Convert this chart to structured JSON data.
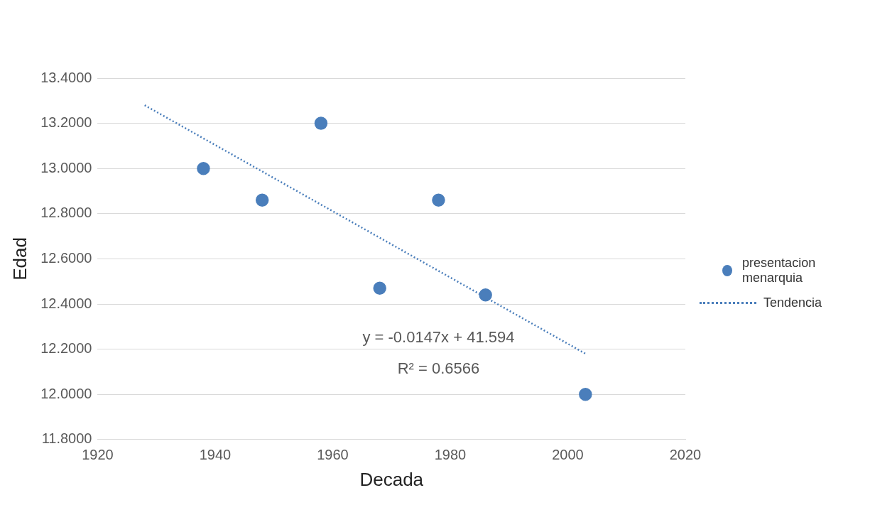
{
  "chart_data": {
    "type": "scatter",
    "xlabel": "Decada",
    "ylabel": "Edad",
    "series": [
      {
        "name": "presentacion menarquia",
        "color": "#4a7ebb",
        "x": [
          1938,
          1948,
          1958,
          1968,
          1978,
          1986,
          2003
        ],
        "values": [
          13.0,
          12.86,
          13.2,
          12.47,
          12.86,
          12.44,
          12.0
        ],
        "marker": "circle"
      },
      {
        "name": "Tendencia",
        "type": "line",
        "color": "#4a7ebb",
        "x": [
          1928,
          2003
        ],
        "values": [
          13.28,
          12.18
        ],
        "line_style": "dotted",
        "marker": "none"
      }
    ],
    "xlim": [
      1920,
      2020
    ],
    "xticks": [
      1920,
      1940,
      1960,
      1980,
      2000,
      2020
    ],
    "ylim": [
      11.8,
      13.4
    ],
    "yticks": [
      {
        "value": 11.8,
        "label": "11.8000"
      },
      {
        "value": 12.0,
        "label": "12.0000"
      },
      {
        "value": 12.2,
        "label": "12.2000"
      },
      {
        "value": 12.4,
        "label": "12.4000"
      },
      {
        "value": 12.6,
        "label": "12.6000"
      },
      {
        "value": 12.8,
        "label": "12.8000"
      },
      {
        "value": 13.0,
        "label": "13.0000"
      },
      {
        "value": 13.2,
        "label": "13.2000"
      },
      {
        "value": 13.4,
        "label": "13.4000"
      }
    ],
    "grid": "y",
    "legend": "right",
    "annotations": [
      "y = -0.0147x + 41.594",
      "R² = 0.6566"
    ]
  }
}
